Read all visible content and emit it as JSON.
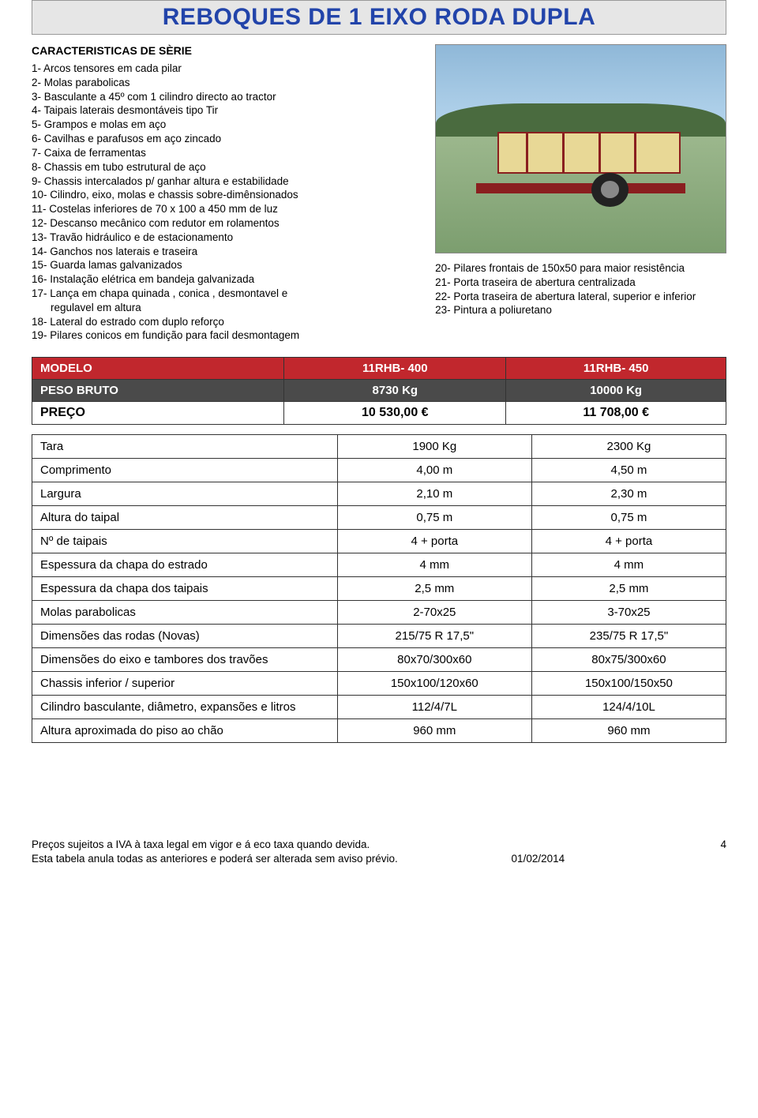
{
  "title": "REBOQUES DE 1 EIXO RODA DUPLA",
  "section_label": "CARACTERISTICAS DE SÈRIE",
  "features_left": [
    "1- Arcos tensores em cada pilar",
    "2- Molas parabolicas",
    "3- Basculante a 45º com 1 cilindro directo ao tractor",
    "4- Taipais laterais desmontáveis tipo Tir",
    "5- Grampos e molas em aço",
    "6- Cavilhas e parafusos em aço zincado",
    "7- Caixa de ferramentas",
    "8- Chassis em tubo estrutural de aço",
    "9- Chassis intercalados p/ ganhar altura e estabilidade",
    "10- Cilindro, eixo, molas e chassis sobre-dimênsionados",
    "11- Costelas inferiores de 70 x 100 a 450 mm de luz",
    "12- Descanso mecânico com redutor em rolamentos",
    "13- Travão hidráulico e de estacionamento",
    "14- Ganchos nos laterais e traseira",
    "15- Guarda lamas galvanizados",
    "16- Instalação elétrica em bandeja galvanizada",
    "17- Lança em chapa quinada , conica , desmontavel e regulavel em altura",
    "18- Lateral do estrado com duplo reforço",
    "19- Pilares conicos em fundição para facil desmontagem"
  ],
  "features_right": [
    "20- Pilares frontais de 150x50 para maior resistência",
    "21- Porta traseira de abertura centralizada",
    "22- Porta traseira de abertura lateral, superior e inferior",
    "23- Pintura a poliuretano"
  ],
  "model_table": {
    "header_row": [
      "MODELO",
      "11RHB- 400",
      "11RHB- 450"
    ],
    "weight_row": [
      "PESO BRUTO",
      "8730 Kg",
      "10000 Kg"
    ],
    "price_row": [
      "PREÇO",
      "10 530,00 €",
      "11 708,00 €"
    ],
    "colors": {
      "red_bg": "#c1272d",
      "dark_bg": "#4a4a4a",
      "text_on_dark": "#ffffff"
    }
  },
  "spec_table": {
    "rows": [
      [
        "Tara",
        "1900 Kg",
        "2300 Kg"
      ],
      [
        "Comprimento",
        "4,00 m",
        "4,50 m"
      ],
      [
        "Largura",
        "2,10 m",
        "2,30 m"
      ],
      [
        "Altura do taipal",
        "0,75 m",
        "0,75 m"
      ],
      [
        "Nº de taipais",
        "4 + porta",
        "4 + porta"
      ],
      [
        "Espessura da chapa do estrado",
        "4 mm",
        "4 mm"
      ],
      [
        "Espessura da chapa dos taipais",
        "2,5 mm",
        "2,5 mm"
      ],
      [
        "Molas parabolicas",
        "2-70x25",
        "3-70x25"
      ],
      [
        "Dimensões das rodas (Novas)",
        "215/75 R 17,5\"",
        "235/75 R 17,5\""
      ],
      [
        "Dimensões do eixo e tambores dos travões",
        "80x70/300x60",
        "80x75/300x60"
      ],
      [
        "Chassis inferior / superior",
        "150x100/120x60",
        "150x100/150x50"
      ],
      [
        "Cilindro basculante, diâmetro, expansões e litros",
        "112/4/7L",
        "124/4/10L"
      ],
      [
        "Altura aproximada do piso ao chão",
        "960 mm",
        "960 mm"
      ]
    ]
  },
  "footer": {
    "line1": "Preços sujeitos a IVA à taxa legal em vigor e á eco taxa quando devida.",
    "line2_prefix": "Esta tabela anula todas as anteriores e poderá ser alterada sem aviso prévio.",
    "date": "01/02/2014",
    "page_num": "4"
  },
  "styling": {
    "title_color": "#2244aa",
    "title_bg": "#e6e6e6",
    "border_color": "#333333",
    "body_font_size": 14,
    "title_font_size": 30
  }
}
